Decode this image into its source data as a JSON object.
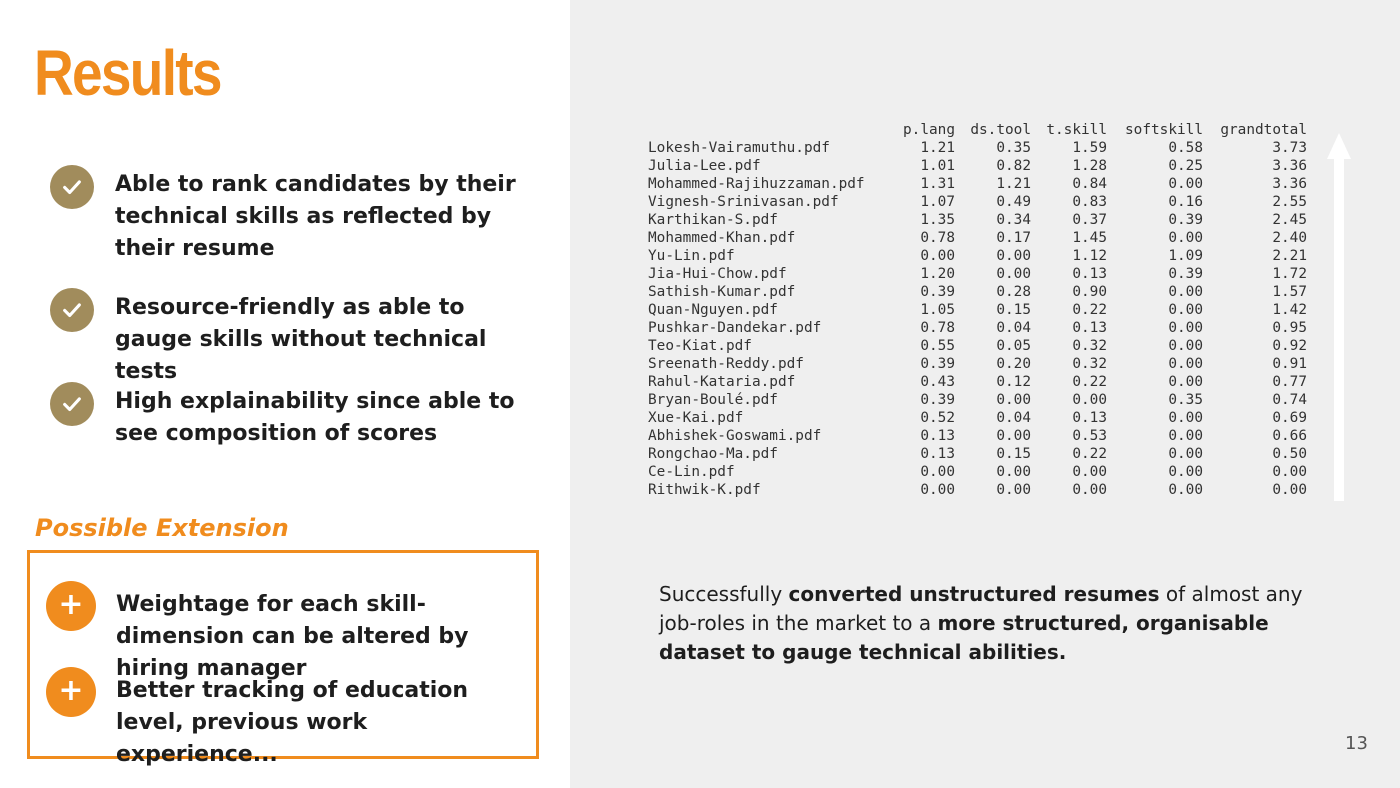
{
  "slide": {
    "title": "Results",
    "page_number": "13"
  },
  "benefits": [
    {
      "text": "Able to rank candidates by their technical skills as reflected by their resume",
      "icon": "check-icon"
    },
    {
      "text": "Resource-friendly as able to gauge skills without technical tests",
      "icon": "check-icon"
    },
    {
      "text": "High explainability since able to see composition of scores",
      "icon": "check-icon"
    }
  ],
  "extension": {
    "title": "Possible Extension",
    "items": [
      {
        "text": "Weightage for each skill-dimension can be altered by hiring manager",
        "icon": "plus-icon"
      },
      {
        "text": "Better tracking of education level, previous work experience...",
        "icon": "plus-icon"
      }
    ]
  },
  "score_table": {
    "columns": [
      "p.lang",
      "ds.tool",
      "t.skill",
      "softskill",
      "grandtotal"
    ],
    "rows": [
      [
        "Lokesh-Vairamuthu.pdf",
        "1.21",
        "0.35",
        "1.59",
        "0.58",
        "3.73"
      ],
      [
        "Julia-Lee.pdf",
        "1.01",
        "0.82",
        "1.28",
        "0.25",
        "3.36"
      ],
      [
        "Mohammed-Rajihuzzaman.pdf",
        "1.31",
        "1.21",
        "0.84",
        "0.00",
        "3.36"
      ],
      [
        "Vignesh-Srinivasan.pdf",
        "1.07",
        "0.49",
        "0.83",
        "0.16",
        "2.55"
      ],
      [
        "Karthikan-S.pdf",
        "1.35",
        "0.34",
        "0.37",
        "0.39",
        "2.45"
      ],
      [
        "Mohammed-Khan.pdf",
        "0.78",
        "0.17",
        "1.45",
        "0.00",
        "2.40"
      ],
      [
        "Yu-Lin.pdf",
        "0.00",
        "0.00",
        "1.12",
        "1.09",
        "2.21"
      ],
      [
        "Jia-Hui-Chow.pdf",
        "1.20",
        "0.00",
        "0.13",
        "0.39",
        "1.72"
      ],
      [
        "Sathish-Kumar.pdf",
        "0.39",
        "0.28",
        "0.90",
        "0.00",
        "1.57"
      ],
      [
        "Quan-Nguyen.pdf",
        "1.05",
        "0.15",
        "0.22",
        "0.00",
        "1.42"
      ],
      [
        "Pushkar-Dandekar.pdf",
        "0.78",
        "0.04",
        "0.13",
        "0.00",
        "0.95"
      ],
      [
        "Teo-Kiat.pdf",
        "0.55",
        "0.05",
        "0.32",
        "0.00",
        "0.92"
      ],
      [
        "Sreenath-Reddy.pdf",
        "0.39",
        "0.20",
        "0.32",
        "0.00",
        "0.91"
      ],
      [
        "Rahul-Kataria.pdf",
        "0.43",
        "0.12",
        "0.22",
        "0.00",
        "0.77"
      ],
      [
        "Bryan-Boulé.pdf",
        "0.39",
        "0.00",
        "0.00",
        "0.35",
        "0.74"
      ],
      [
        "Xue-Kai.pdf",
        "0.52",
        "0.04",
        "0.13",
        "0.00",
        "0.69"
      ],
      [
        "Abhishek-Goswami.pdf",
        "0.13",
        "0.00",
        "0.53",
        "0.00",
        "0.66"
      ],
      [
        "Rongchao-Ma.pdf",
        "0.13",
        "0.15",
        "0.22",
        "0.00",
        "0.50"
      ],
      [
        "Ce-Lin.pdf",
        "0.00",
        "0.00",
        "0.00",
        "0.00",
        "0.00"
      ],
      [
        "Rithwik-K.pdf",
        "0.00",
        "0.00",
        "0.00",
        "0.00",
        "0.00"
      ]
    ],
    "arrow_icon": "arrow-up-icon"
  },
  "caption": {
    "parts": [
      {
        "text": "Successfully ",
        "bold": false
      },
      {
        "text": "converted unstructured resumes",
        "bold": true
      },
      {
        "text": " of almost any job-roles in the market to a ",
        "bold": false
      },
      {
        "text": "more structured, organisable dataset to gauge technical abilities.",
        "bold": true
      }
    ]
  },
  "colors": {
    "accent": "#f08c1e",
    "check_badge": "#a18c5c",
    "panel_background": "#efefef"
  }
}
